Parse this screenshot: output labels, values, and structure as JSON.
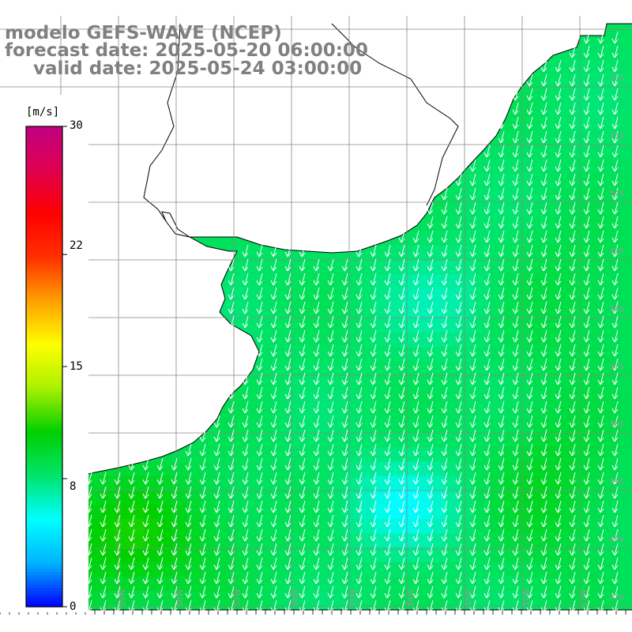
{
  "title": {
    "model": "modelo GEFS-WAVE (NCEP)",
    "forecast_date": "forecast date: 2025-05-20 06:00:00",
    "valid_date": "valid date: 2025-05-24 03:00:00"
  },
  "colorbar": {
    "unit": "[m/s]",
    "ticks": [
      "30",
      "22",
      "15",
      "8",
      "0"
    ],
    "range": [
      0,
      30
    ],
    "colors": [
      "#0000ff",
      "#00b4ff",
      "#00ffff",
      "#00e46c",
      "#00d000",
      "#aaf000",
      "#ffff00",
      "#ffa000",
      "#ff3000",
      "#ff0000",
      "#e00050",
      "#c00080"
    ]
  },
  "map": {
    "land_color": "#ffffff",
    "grid_color": "#888888",
    "arrow_color": "#ffffff",
    "lat_labels": [
      "32S",
      "33S",
      "34S",
      "35S",
      "36S",
      "37S",
      "38S",
      "39S",
      "40S",
      "41S"
    ],
    "lon_labels": [
      "61W",
      "60W",
      "59W",
      "58W",
      "57W",
      "56W",
      "55W",
      "54W",
      "53W",
      "52W",
      "51W"
    ]
  },
  "chart_data": {
    "type": "heatmap",
    "variable": "wind speed",
    "unit": "m/s",
    "lon_range": [
      -61.6,
      -50.6
    ],
    "lat_range": [
      -41.6,
      -31.2
    ],
    "wind_direction": "from north-northeast",
    "speed_regions": [
      {
        "area": "south-west open sea",
        "speed_ms": 11
      },
      {
        "area": "central offshore",
        "speed_ms": 8
      },
      {
        "area": "south-central minimum",
        "speed_ms": 5
      },
      {
        "area": "south-east",
        "speed_ms": 10
      },
      {
        "area": "near coast",
        "speed_ms": 8
      }
    ]
  }
}
